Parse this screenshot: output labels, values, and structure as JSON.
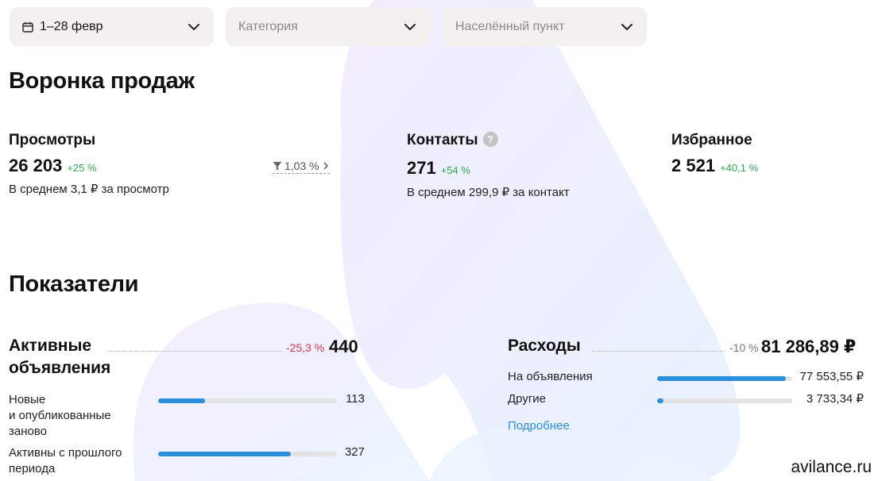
{
  "filters": {
    "date": "1–28 февр",
    "category_placeholder": "Категория",
    "locality_placeholder": "Населённый пункт"
  },
  "funnel": {
    "title": "Воронка продаж",
    "views": {
      "label": "Просмотры",
      "value": "26 203",
      "delta": "+25 %",
      "sub": "В среднем 3,1 ₽ за просмотр",
      "conversion": "1,03 %"
    },
    "contacts": {
      "label": "Контакты",
      "value": "271",
      "delta": "+54 %",
      "sub": "В среднем 299,9 ₽ за контакт"
    },
    "favorites": {
      "label": "Избранное",
      "value": "2 521",
      "delta": "+40,1 %"
    }
  },
  "indicators": {
    "title": "Показатели",
    "active": {
      "title_line1": "Активные",
      "title_line2": "объявления",
      "delta": "-25,3 %",
      "value": "440",
      "rows": [
        {
          "label_lines": [
            "Новые",
            "и опубликованные",
            "заново"
          ],
          "value": "113",
          "fraction": 0.26
        },
        {
          "label_lines": [
            "Активны с прошлого",
            "периода"
          ],
          "value": "327",
          "fraction": 0.74
        }
      ]
    },
    "expenses": {
      "title": "Расходы",
      "delta": "-10 %",
      "value": "81 286,89 ₽",
      "rows": [
        {
          "label": "На объявления",
          "value": "77 553,55 ₽",
          "fraction": 0.954
        },
        {
          "label": "Другие",
          "value": "3 733,34 ₽",
          "fraction": 0.046
        }
      ],
      "more_link": "Подробнее"
    }
  },
  "watermark": "avilance.ru",
  "colors": {
    "accent": "#2b8fdc",
    "positive": "#2fa84f",
    "negative": "#d9364f",
    "filter_bg": "#f2f1f0"
  },
  "icons": {
    "calendar": "calendar-icon",
    "chevron": "chevron-down-icon",
    "help": "question-icon",
    "funnel": "funnel-icon"
  }
}
